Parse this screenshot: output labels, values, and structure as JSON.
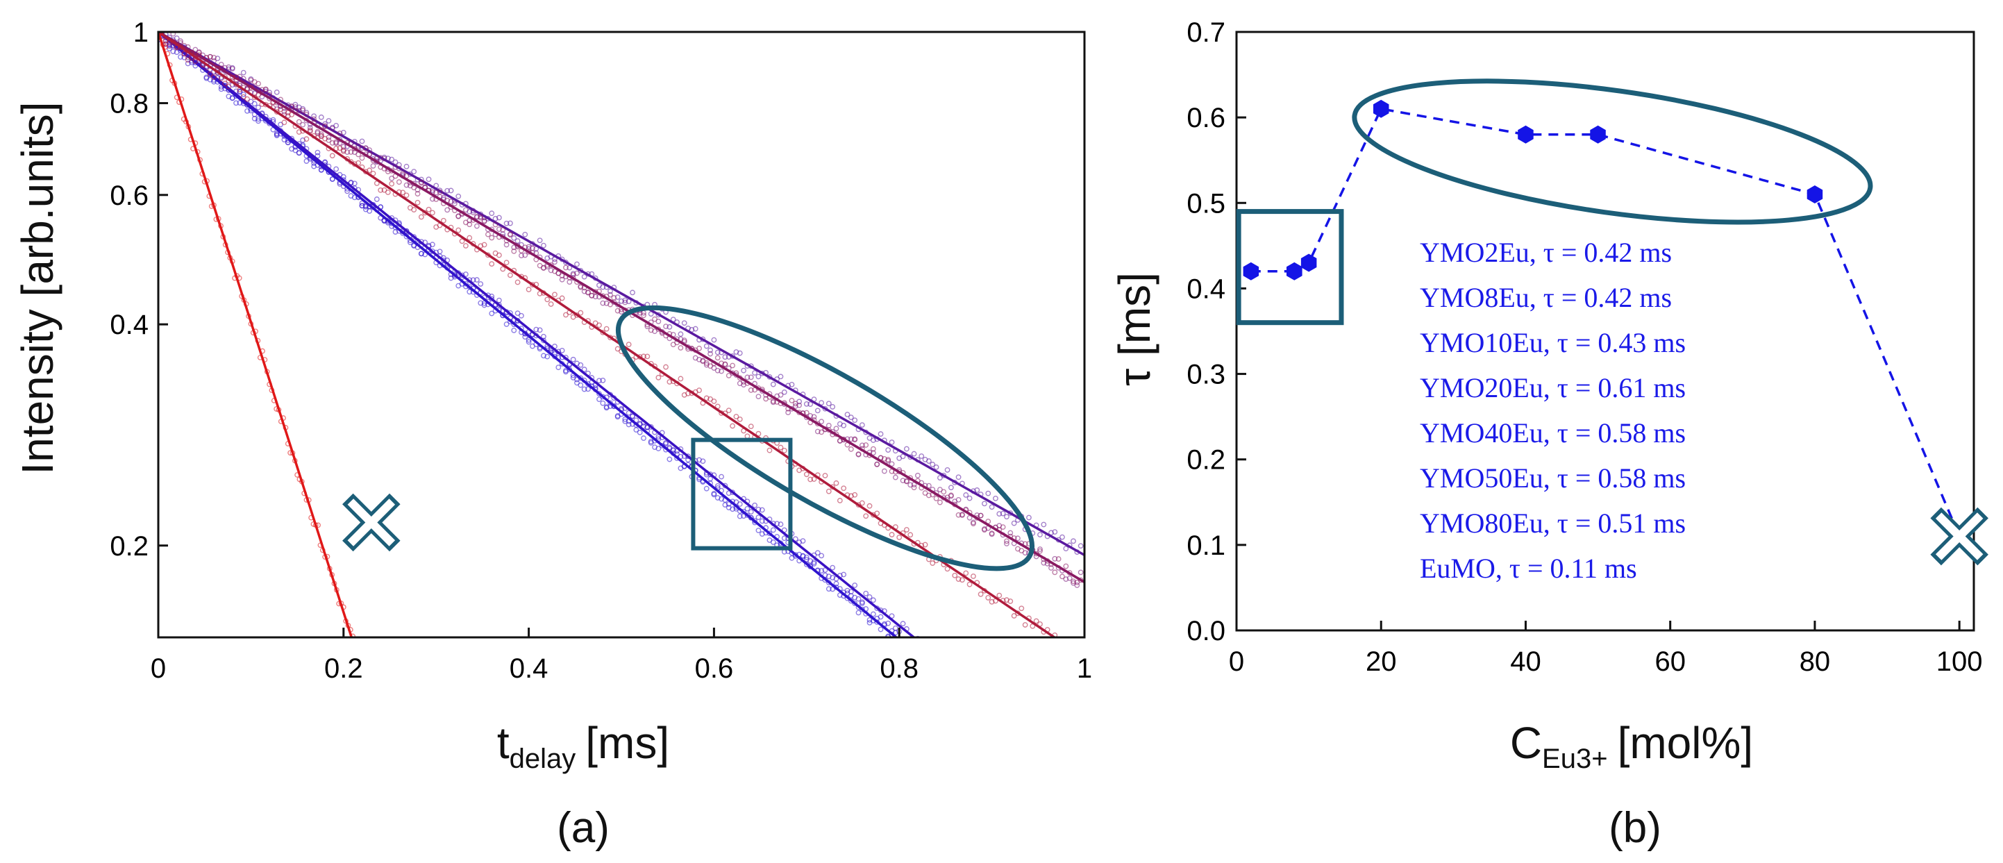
{
  "chart_data": [
    {
      "type": "line",
      "panel_label": "(a)",
      "title": "",
      "xlabel": {
        "main": "t",
        "sub": "delay",
        "unit": "[ms]"
      },
      "ylabel": "Intensity [arb.units]",
      "xlim": [
        0,
        1.0
      ],
      "ylim": [
        0.15,
        1.0
      ],
      "yscale": "log",
      "xticks": [
        0,
        0.2,
        0.4,
        0.6,
        0.8,
        1.0
      ],
      "xtick_labels": [
        "0",
        "0.2",
        "0.4",
        "0.6",
        "0.8",
        "1"
      ],
      "yticks": [
        0.2,
        0.4,
        0.6,
        0.8,
        1.0
      ],
      "ytick_labels": [
        "0.2",
        "0.4",
        "0.6",
        "0.8",
        "1"
      ],
      "series": [
        {
          "name": "YMO2Eu",
          "tau_ms": 0.42,
          "color": "#2a16d6"
        },
        {
          "name": "YMO8Eu",
          "tau_ms": 0.42,
          "color": "#2f14cf"
        },
        {
          "name": "YMO10Eu",
          "tau_ms": 0.43,
          "color": "#3a12c4"
        },
        {
          "name": "YMO20Eu",
          "tau_ms": 0.61,
          "color": "#5a1aa0"
        },
        {
          "name": "YMO40Eu",
          "tau_ms": 0.58,
          "color": "#7a1a7c"
        },
        {
          "name": "YMO50Eu",
          "tau_ms": 0.58,
          "color": "#8a1a62"
        },
        {
          "name": "YMO80Eu",
          "tau_ms": 0.51,
          "color": "#b01c3c"
        },
        {
          "name": "EuMO",
          "tau_ms": 0.11,
          "color": "#e01818"
        }
      ],
      "annotations": [
        {
          "shape": "cross",
          "at": [
            0.23,
            0.215
          ],
          "color": "#1c5e78"
        },
        {
          "shape": "square",
          "at": [
            0.63,
            0.235
          ],
          "color": "#1c5e78"
        },
        {
          "shape": "ellipse",
          "at": [
            0.72,
            0.28
          ],
          "color": "#1c5e78"
        }
      ]
    },
    {
      "type": "scatter",
      "panel_label": "(b)",
      "title": "",
      "xlabel": {
        "main": "C",
        "sub": "Eu3+",
        "unit": "[mol%]"
      },
      "ylabel": "τ [ms]",
      "xlim": [
        0,
        102
      ],
      "ylim": [
        0,
        0.7
      ],
      "xticks": [
        0,
        20,
        40,
        60,
        80,
        100
      ],
      "xtick_labels": [
        "0",
        "20",
        "40",
        "60",
        "80",
        "100"
      ],
      "yticks": [
        0.0,
        0.1,
        0.2,
        0.3,
        0.4,
        0.5,
        0.6,
        0.7
      ],
      "ytick_labels": [
        "0.0",
        "0.1",
        "0.2",
        "0.3",
        "0.4",
        "0.5",
        "0.6",
        "0.7"
      ],
      "x": [
        2,
        8,
        10,
        20,
        40,
        50,
        80,
        100
      ],
      "y": [
        0.42,
        0.42,
        0.43,
        0.61,
        0.58,
        0.58,
        0.51,
        0.11
      ],
      "marker_color": "#1414e6",
      "line_style": "dashed",
      "legend": [
        "YMO2Eu, τ = 0.42 ms",
        "YMO8Eu, τ = 0.42 ms",
        "YMO10Eu, τ = 0.43 ms",
        "YMO20Eu, τ = 0.61 ms",
        "YMO40Eu, τ = 0.58 ms",
        "YMO50Eu, τ = 0.58 ms",
        "YMO80Eu, τ = 0.51 ms",
        "EuMO, τ = 0.11 ms"
      ],
      "legend_color": "#1a1ae8",
      "annotations": [
        {
          "shape": "square",
          "around": "first three points",
          "color": "#1c5e78"
        },
        {
          "shape": "ellipse",
          "around": "points at 20–80 mol%",
          "color": "#1c5e78"
        },
        {
          "shape": "cross",
          "around": "point at 100 mol%",
          "color": "#1c5e78"
        }
      ]
    }
  ]
}
